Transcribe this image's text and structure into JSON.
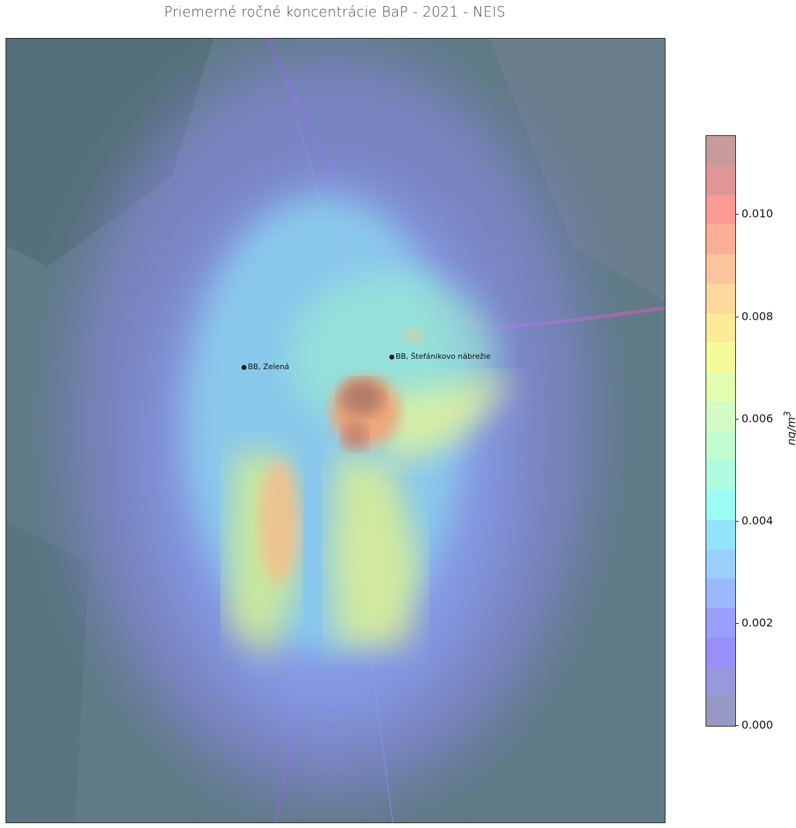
{
  "title": "Priemerné ročné koncentrácie BaP - 2021 - NEIS",
  "stations": [
    {
      "label": "BB, Zelená"
    },
    {
      "label": "BB, Štefánikovo nábrežie"
    }
  ],
  "colorbar": {
    "unit_label": "ng/m",
    "unit_sup": "3",
    "ticks": [
      "0.000",
      "0.002",
      "0.004",
      "0.006",
      "0.008",
      "0.010"
    ],
    "range": [
      0,
      0.0115
    ],
    "bins_top_to_bottom": [
      "#c89a9a",
      "#e09696",
      "#fc9a94",
      "#fcae98",
      "#fcc49c",
      "#fcd89c",
      "#fcea98",
      "#f4fc9a",
      "#e2fcb0",
      "#d2fcc4",
      "#c0fcd0",
      "#b0fce0",
      "#9cfcf4",
      "#94e4fc",
      "#9cd0fc",
      "#9cb8fc",
      "#98a0fc",
      "#9890f8",
      "#9898dc",
      "#9898c4"
    ]
  }
}
